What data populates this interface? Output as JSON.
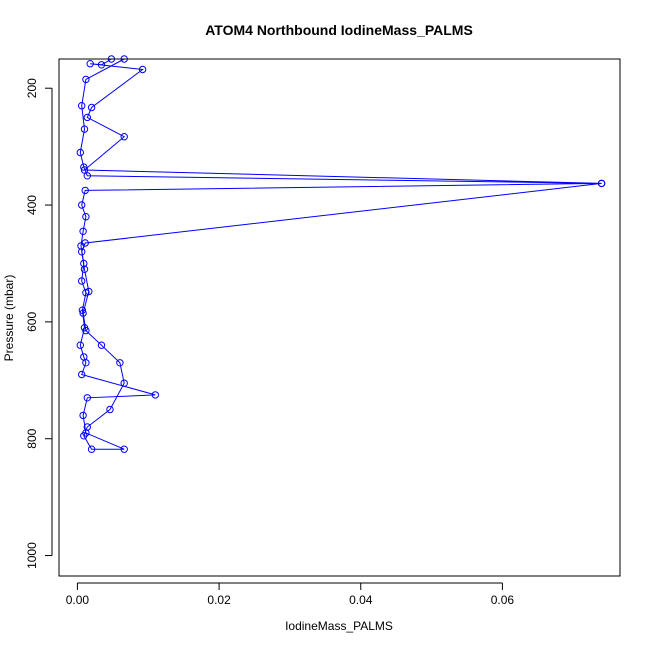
{
  "chart_data": {
    "type": "line",
    "title": "ATOM4 Northbound IodineMass_PALMS",
    "xlabel": "IodineMass_PALMS",
    "ylabel": "Pressure (mbar)",
    "xlim": [
      -0.0026,
      0.0766
    ],
    "ylim": [
      1035,
      150
    ],
    "y_reversed": true,
    "x_ticks": [
      0.0,
      0.02,
      0.04,
      0.06
    ],
    "x_tick_labels": [
      "0.00",
      "0.02",
      "0.04",
      "0.06"
    ],
    "y_ticks": [
      200,
      400,
      600,
      800,
      1000
    ],
    "y_tick_labels": [
      "200",
      "400",
      "600",
      "800",
      "1000"
    ],
    "grid": false,
    "legend": "none",
    "marker": "open-circle",
    "series": [
      {
        "color": "#0000ff",
        "points": [
          [
            0.0066,
            150
          ],
          [
            0.0012,
            185
          ],
          [
            0.0006,
            230
          ],
          [
            0.001,
            270
          ],
          [
            0.0004,
            310
          ],
          [
            0.0009,
            335
          ],
          [
            0.0014,
            350
          ],
          [
            0.074,
            363
          ],
          [
            0.0011,
            375
          ],
          [
            0.0006,
            400
          ],
          [
            0.0012,
            420
          ],
          [
            0.0008,
            445
          ],
          [
            0.0005,
            470
          ],
          [
            0.0009,
            500
          ],
          [
            0.0006,
            530
          ],
          [
            0.0012,
            550
          ],
          [
            0.0007,
            580
          ],
          [
            0.001,
            610
          ],
          [
            0.0004,
            640
          ],
          [
            0.0009,
            660
          ],
          [
            0.0012,
            670
          ],
          [
            0.0006,
            690
          ],
          [
            0.011,
            725
          ],
          [
            0.0014,
            730
          ],
          [
            0.0008,
            760
          ],
          [
            0.0012,
            790
          ],
          [
            0.0066,
            818
          ],
          [
            0.002,
            818
          ],
          [
            0.0009,
            795
          ],
          [
            0.0014,
            780
          ],
          [
            0.0046,
            750
          ],
          [
            0.0066,
            705
          ],
          [
            0.006,
            670
          ],
          [
            0.0034,
            640
          ],
          [
            0.0012,
            615
          ],
          [
            0.0008,
            585
          ],
          [
            0.0016,
            548
          ],
          [
            0.001,
            510
          ],
          [
            0.0006,
            480
          ],
          [
            0.0011,
            465
          ],
          [
            0.074,
            363
          ],
          [
            0.001,
            340
          ],
          [
            0.0066,
            283
          ],
          [
            0.0014,
            250
          ],
          [
            0.002,
            233
          ],
          [
            0.0092,
            168
          ],
          [
            0.0018,
            158
          ],
          [
            0.0034,
            160
          ],
          [
            0.0048,
            150
          ]
        ]
      }
    ]
  }
}
